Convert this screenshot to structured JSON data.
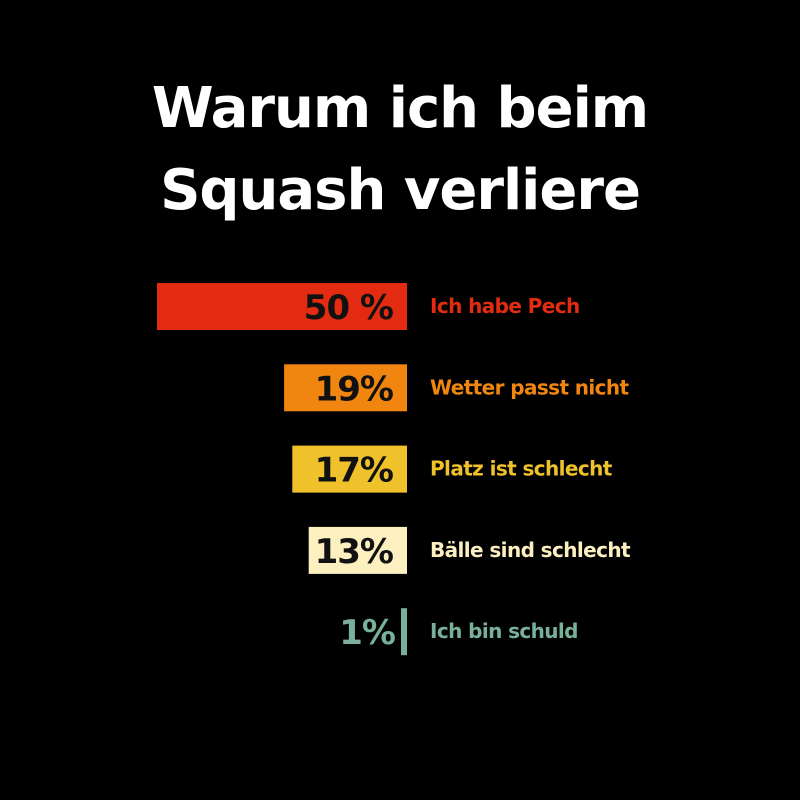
{
  "chart_data": {
    "type": "bar",
    "orientation": "horizontal",
    "title_lines": [
      "Warum ich beim",
      "Squash verliere"
    ],
    "categories": [
      "Ich habe Pech",
      "Wetter passt nicht",
      "Platz ist schlecht",
      "Bälle sind schlecht",
      "Ich bin schuld"
    ],
    "values": [
      50,
      19,
      17,
      13,
      1
    ],
    "value_labels": [
      "50 %",
      "19%",
      "17%",
      "13%",
      "1%"
    ],
    "colors": [
      "#e32b12",
      "#f0860f",
      "#efc12a",
      "#fcefc0",
      "#78b09a"
    ],
    "value_label_colors": [
      "#111111",
      "#111111",
      "#111111",
      "#111111",
      "#78b09a"
    ],
    "xlabel": "",
    "ylabel": "",
    "grid": false,
    "legend": "none"
  }
}
